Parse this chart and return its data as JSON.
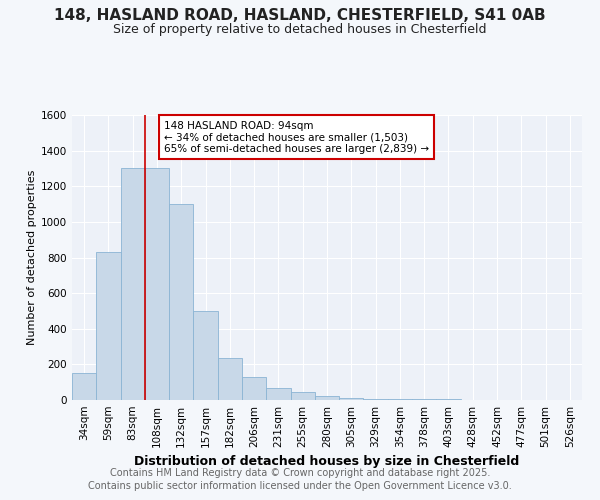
{
  "title_line1": "148, HASLAND ROAD, HASLAND, CHESTERFIELD, S41 0AB",
  "title_line2": "Size of property relative to detached houses in Chesterfield",
  "xlabel": "Distribution of detached houses by size in Chesterfield",
  "ylabel": "Number of detached properties",
  "footer_line1": "Contains HM Land Registry data © Crown copyright and database right 2025.",
  "footer_line2": "Contains public sector information licensed under the Open Government Licence v3.0.",
  "bar_labels": [
    "34sqm",
    "59sqm",
    "83sqm",
    "108sqm",
    "132sqm",
    "157sqm",
    "182sqm",
    "206sqm",
    "231sqm",
    "255sqm",
    "280sqm",
    "305sqm",
    "329sqm",
    "354sqm",
    "378sqm",
    "403sqm",
    "428sqm",
    "452sqm",
    "477sqm",
    "501sqm",
    "526sqm"
  ],
  "bar_values": [
    150,
    830,
    1300,
    1300,
    1100,
    500,
    235,
    130,
    70,
    45,
    20,
    10,
    8,
    5,
    4,
    3,
    2,
    2,
    1,
    1,
    1
  ],
  "bar_color": "#c8d8e8",
  "bar_edgecolor": "#8ab4d4",
  "ylim": [
    0,
    1600
  ],
  "yticks": [
    0,
    200,
    400,
    600,
    800,
    1000,
    1200,
    1400,
    1600
  ],
  "annotation_text": "148 HASLAND ROAD: 94sqm\n← 34% of detached houses are smaller (1,503)\n65% of semi-detached houses are larger (2,839) →",
  "vline_x_index": 2.5,
  "vline_color": "#cc0000",
  "bg_color": "#f4f7fb",
  "plot_bg_color": "#edf1f8",
  "grid_color": "#ffffff",
  "title_fontsize": 11,
  "subtitle_fontsize": 9,
  "ylabel_fontsize": 8,
  "xlabel_fontsize": 9,
  "tick_fontsize": 7.5,
  "footer_fontsize": 7
}
